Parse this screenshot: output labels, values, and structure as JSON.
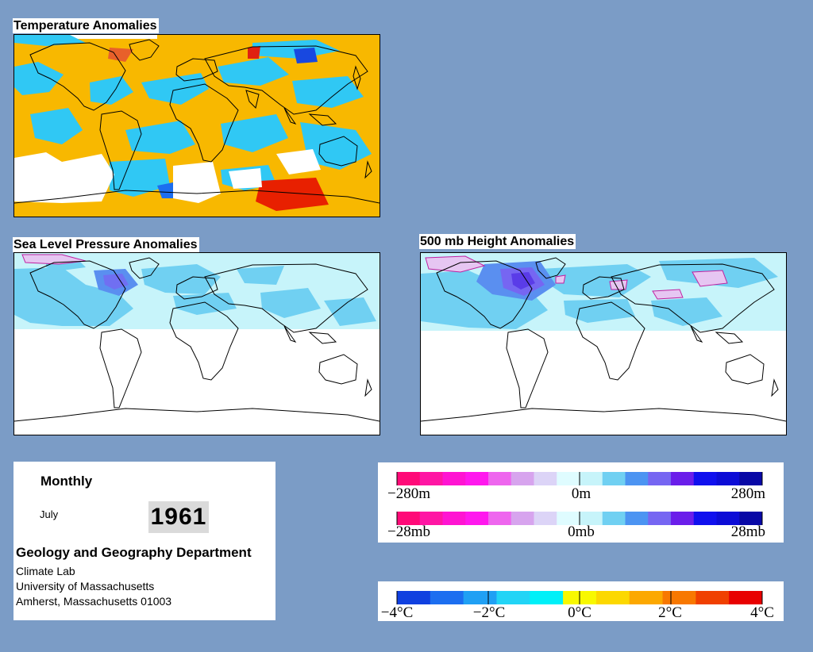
{
  "panels": {
    "temperature": {
      "title": "Temperature Anomalies"
    },
    "slp": {
      "title": "Sea Level Pressure Anomalies"
    },
    "height500": {
      "title": "500 mb Height Anomalies"
    }
  },
  "info": {
    "period": "Monthly",
    "month": "July",
    "year": "1961",
    "department": "Geology and Geography Department",
    "lab": "Climate Lab",
    "university": "University of Massachusetts",
    "address": "Amherst, Massachusetts 01003"
  },
  "legends": {
    "height": {
      "labels": [
        "−280m",
        "0m",
        "280m"
      ],
      "min": -280,
      "max": 280,
      "unit": "m",
      "colors": [
        "#ff0a78",
        "#ff16a4",
        "#ff14d2",
        "#ff18ee",
        "#ee66ee",
        "#d7a4ee",
        "#dcd4f7",
        "#dffcff",
        "#c7f4fa",
        "#70d0f2",
        "#4c94f2",
        "#7666f2",
        "#6a1eea",
        "#1010ee",
        "#0c0cd6",
        "#0808a6"
      ]
    },
    "pressure": {
      "labels": [
        "−28mb",
        "0mb",
        "28mb"
      ],
      "min": -28,
      "max": 28,
      "unit": "mb",
      "colors": [
        "#ff0a78",
        "#ff16a4",
        "#ff14d2",
        "#ff18ee",
        "#ee66ee",
        "#d7a4ee",
        "#dcd4f7",
        "#dffcff",
        "#c7f4fa",
        "#70d0f2",
        "#4c94f2",
        "#7666f2",
        "#6a1eea",
        "#1010ee",
        "#0c0cd6",
        "#0808a6"
      ]
    },
    "temperature": {
      "labels": [
        "−4°C",
        "−2°C",
        "0°C",
        "2°C",
        "4°C"
      ],
      "min": -4,
      "max": 4,
      "unit": "°C",
      "colors": [
        "#1040e0",
        "#1c6ef0",
        "#20a0f4",
        "#22d4f6",
        "#00f0f8",
        "#f8f800",
        "#fcd800",
        "#fca800",
        "#f87800",
        "#f04000",
        "#e80000"
      ]
    }
  },
  "colors": {
    "background": "#7b9cc6",
    "warm": "#f8b800",
    "cold": "#30c8f4",
    "low_pressure": "#5aa0ee",
    "high_pressure": "#e0b0ee"
  }
}
